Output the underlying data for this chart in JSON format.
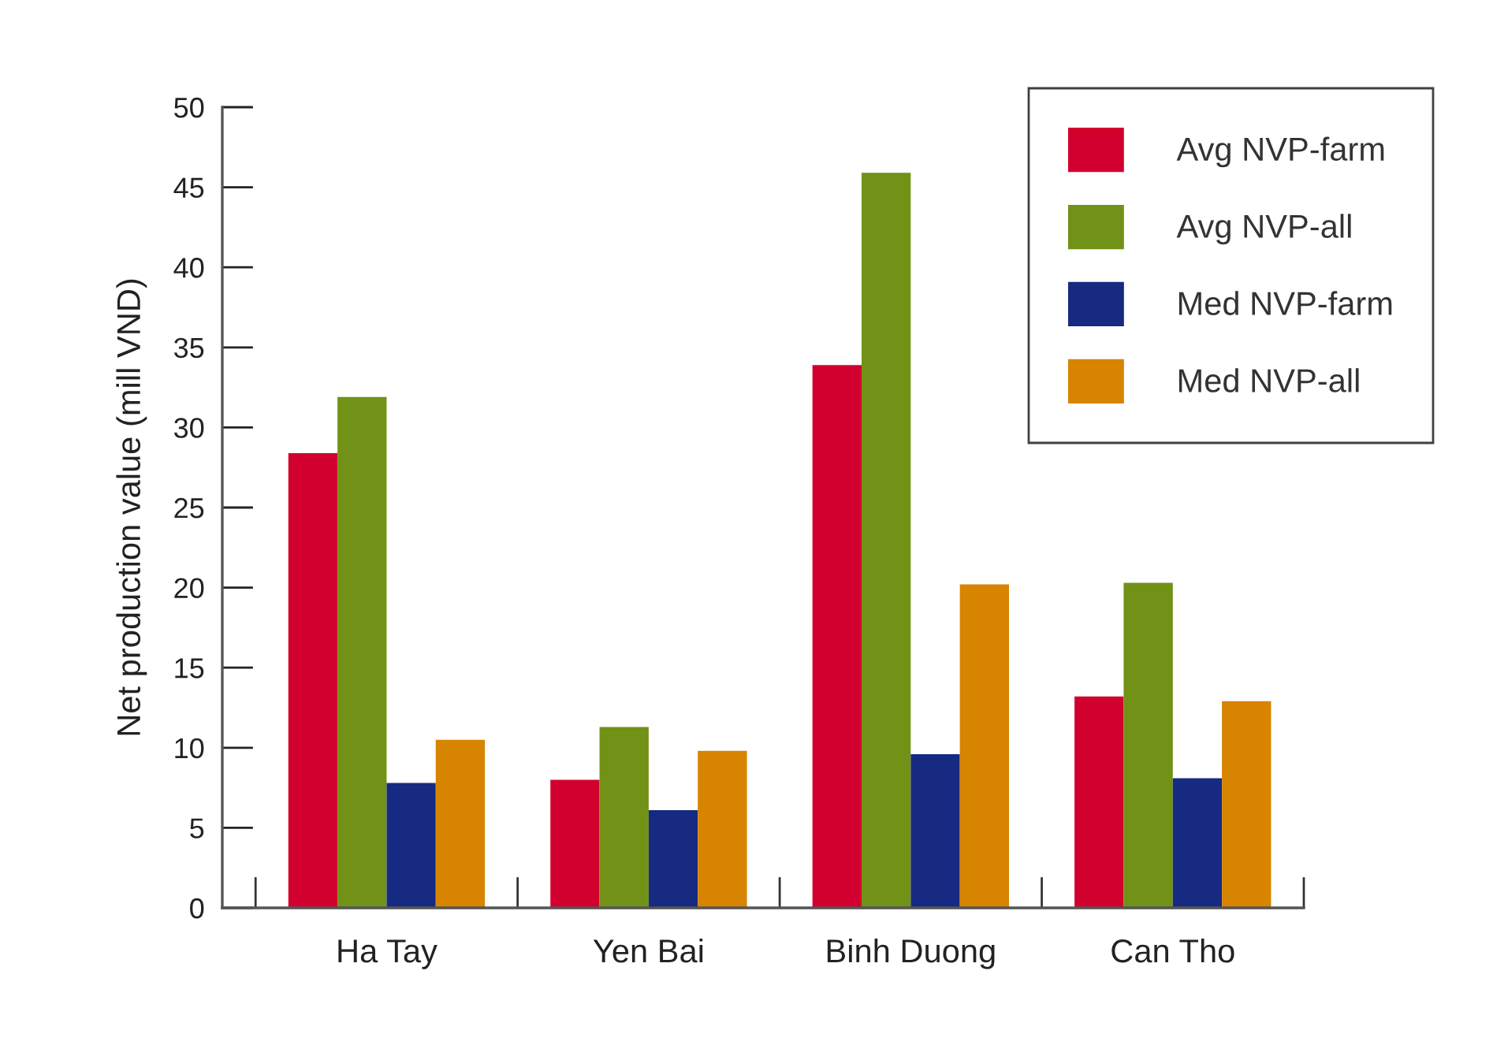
{
  "chart_data": {
    "type": "bar",
    "ylabel": "Net production value (mill VND)",
    "categories": [
      "Ha Tay",
      "Yen Bai",
      "Binh Duong",
      "Can Tho"
    ],
    "series": [
      {
        "name": "Avg NVP-farm",
        "color": "#d2002e",
        "values": [
          28.4,
          8.0,
          33.9,
          13.2
        ]
      },
      {
        "name": "Avg NVP-all",
        "color": "#719216",
        "values": [
          31.9,
          11.3,
          45.9,
          20.3
        ]
      },
      {
        "name": "Med NVP-farm",
        "color": "#162a82",
        "values": [
          7.8,
          6.1,
          9.6,
          8.1
        ]
      },
      {
        "name": "Med NVP-all",
        "color": "#d78400",
        "values": [
          10.5,
          9.8,
          20.2,
          12.9
        ]
      }
    ],
    "ylim": [
      0,
      50
    ],
    "yticks": [
      0,
      5,
      10,
      15,
      20,
      25,
      30,
      35,
      40,
      45,
      50
    ],
    "grid": false,
    "legend": "top right"
  }
}
